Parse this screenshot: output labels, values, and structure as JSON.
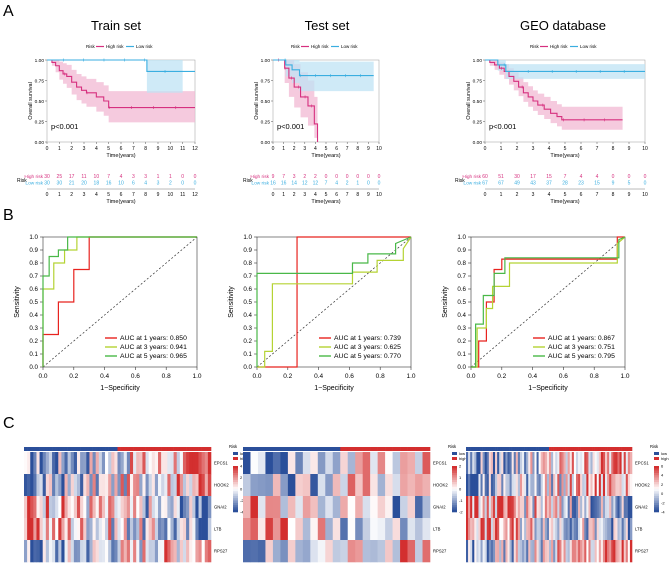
{
  "panel_labels": [
    "A",
    "B",
    "C"
  ],
  "colors": {
    "high": "#d6307f",
    "low": "#3aaee0",
    "high_band": "#f2b8d3",
    "low_band": "#bfe3f4",
    "auc1": "#e8231f",
    "auc3": "#b5d334",
    "auc5": "#49b848",
    "hm_high": "#d32f2f",
    "hm_low": "#2b4f9a"
  },
  "chart_data": [
    {
      "type": "line",
      "id": "km-train",
      "title": "Train set",
      "xlabel": "Time(years)",
      "ylabel": "Overall survival",
      "xlim": [
        0,
        12
      ],
      "ylim": [
        0,
        1
      ],
      "xticks": [
        "0",
        "1",
        "2",
        "3",
        "4",
        "5",
        "6",
        "7",
        "8",
        "9",
        "10",
        "11",
        "12"
      ],
      "yticks": [
        "0.00",
        "0.25",
        "0.50",
        "0.75",
        "1.00"
      ],
      "legend": {
        "title": "Risk",
        "entries": [
          "High risk",
          "Low risk"
        ]
      },
      "pvalue": "p<0.001",
      "series": [
        {
          "name": "High risk",
          "x": [
            0,
            0.4,
            0.7,
            1,
            1.3,
            1.6,
            2,
            2.4,
            2.8,
            3.2,
            4,
            4.6,
            5,
            6,
            7,
            8,
            9,
            10,
            12
          ],
          "y": [
            1,
            0.97,
            0.93,
            0.87,
            0.83,
            0.8,
            0.73,
            0.67,
            0.63,
            0.6,
            0.55,
            0.5,
            0.42,
            0.42,
            0.42,
            0.42,
            0.42,
            0.42,
            0.42
          ],
          "lower": [
            1,
            0.93,
            0.85,
            0.76,
            0.71,
            0.66,
            0.58,
            0.51,
            0.47,
            0.43,
            0.37,
            0.32,
            0.24,
            0.24,
            0.24,
            0.24,
            0.24,
            0.24,
            0.24
          ],
          "upper": [
            1,
            1,
            1,
            0.98,
            0.96,
            0.94,
            0.88,
            0.83,
            0.8,
            0.77,
            0.73,
            0.69,
            0.62,
            0.62,
            0.62,
            0.62,
            0.62,
            0.62,
            0.62
          ]
        },
        {
          "name": "Low risk",
          "x": [
            0,
            8.1,
            12
          ],
          "y": [
            1,
            0.86,
            0.86
          ],
          "lower": [
            1,
            0.6,
            0.6
          ],
          "upper": [
            1,
            1,
            1
          ],
          "end": 11
        }
      ],
      "risk_table": {
        "title": "Risk",
        "rows": [
          {
            "name": "High risk",
            "values": [
              "30",
              "25",
              "17",
              "11",
              "10",
              "7",
              "4",
              "3",
              "3",
              "1",
              "1",
              "0",
              "0"
            ]
          },
          {
            "name": "Low risk",
            "values": [
              "30",
              "30",
              "21",
              "20",
              "18",
              "16",
              "10",
              "6",
              "4",
              "3",
              "2",
              "0",
              "0"
            ]
          }
        ]
      }
    },
    {
      "type": "line",
      "id": "km-test",
      "title": "Test set",
      "xlabel": "Time(years)",
      "ylabel": "Overall survival",
      "xlim": [
        0,
        10
      ],
      "ylim": [
        0,
        1
      ],
      "xticks": [
        "0",
        "1",
        "2",
        "3",
        "4",
        "5",
        "6",
        "7",
        "8",
        "9",
        "10"
      ],
      "yticks": [
        "0.00",
        "0.25",
        "0.50",
        "0.75",
        "1.00"
      ],
      "legend": {
        "title": "Risk",
        "entries": [
          "High risk",
          "Low risk"
        ]
      },
      "pvalue": "p<0.001",
      "series": [
        {
          "name": "High risk",
          "x": [
            0,
            1.1,
            1.5,
            2,
            2.6,
            3.3,
            3.9,
            4.2
          ],
          "y": [
            1,
            0.9,
            0.78,
            0.67,
            0.55,
            0.44,
            0.22,
            0
          ],
          "lower": [
            1,
            0.72,
            0.55,
            0.42,
            0.3,
            0.2,
            0.05,
            0
          ],
          "upper": [
            1,
            1,
            1,
            0.95,
            0.85,
            0.75,
            0.55,
            0.2
          ],
          "end": 4.2
        },
        {
          "name": "Low risk",
          "x": [
            0,
            1.2,
            1.8,
            2.5,
            9.5
          ],
          "y": [
            1,
            0.94,
            0.88,
            0.81,
            0.81
          ],
          "lower": [
            1,
            0.8,
            0.72,
            0.62,
            0.62
          ],
          "upper": [
            1,
            1,
            1,
            0.98,
            0.98
          ],
          "end": 9.5
        }
      ],
      "risk_table": {
        "title": "Risk",
        "rows": [
          {
            "name": "High risk",
            "values": [
              "9",
              "7",
              "3",
              "2",
              "2",
              "0",
              "0",
              "0",
              "0",
              "0",
              "0"
            ]
          },
          {
            "name": "Low risk",
            "values": [
              "16",
              "16",
              "14",
              "12",
              "12",
              "7",
              "4",
              "2",
              "1",
              "0",
              "0"
            ]
          }
        ]
      }
    },
    {
      "type": "line",
      "id": "km-geo",
      "title": "GEO database",
      "xlabel": "Time(years)",
      "ylabel": "Overall survival",
      "xlim": [
        0,
        10
      ],
      "ylim": [
        0,
        1
      ],
      "xticks": [
        "0",
        "1",
        "2",
        "3",
        "4",
        "5",
        "6",
        "7",
        "8",
        "9",
        "10"
      ],
      "yticks": [
        "0.00",
        "0.25",
        "0.50",
        "0.75",
        "1.00"
      ],
      "legend": {
        "title": "Risk",
        "entries": [
          "High risk",
          "Low risk"
        ]
      },
      "pvalue": "p<0.001",
      "series": [
        {
          "name": "High risk",
          "x": [
            0,
            0.3,
            0.6,
            0.9,
            1.2,
            1.5,
            1.8,
            2.1,
            2.4,
            2.7,
            3,
            3.3,
            3.7,
            4.1,
            4.5,
            4.8,
            5,
            8.6
          ],
          "y": [
            1,
            0.97,
            0.94,
            0.9,
            0.86,
            0.8,
            0.74,
            0.67,
            0.6,
            0.55,
            0.5,
            0.45,
            0.4,
            0.35,
            0.31,
            0.27,
            0.27,
            0.27
          ],
          "lower": [
            1,
            0.93,
            0.88,
            0.82,
            0.77,
            0.7,
            0.63,
            0.56,
            0.49,
            0.43,
            0.38,
            0.33,
            0.28,
            0.23,
            0.19,
            0.15,
            0.15,
            0.15
          ],
          "upper": [
            1,
            1,
            1,
            0.97,
            0.95,
            0.9,
            0.85,
            0.79,
            0.73,
            0.68,
            0.63,
            0.59,
            0.55,
            0.5,
            0.46,
            0.43,
            0.43,
            0.43
          ],
          "end": 8.6
        },
        {
          "name": "Low risk",
          "x": [
            0,
            0.8,
            1.3,
            10
          ],
          "y": [
            1,
            0.94,
            0.86,
            0.86
          ],
          "lower": [
            1,
            0.87,
            0.77,
            0.77
          ],
          "upper": [
            1,
            1,
            0.95,
            0.95
          ],
          "end": 10
        }
      ],
      "risk_table": {
        "title": "Risk",
        "rows": [
          {
            "name": "High risk",
            "values": [
              "60",
              "51",
              "30",
              "17",
              "15",
              "7",
              "4",
              "4",
              "0",
              "0",
              "0"
            ]
          },
          {
            "name": "Low risk",
            "values": [
              "67",
              "67",
              "49",
              "43",
              "37",
              "28",
              "23",
              "15",
              "9",
              "5",
              "0"
            ]
          }
        ]
      }
    },
    {
      "type": "line",
      "id": "roc-train",
      "xlabel": "1−Specificity",
      "ylabel": "Sensitivity",
      "xlim": [
        0,
        1
      ],
      "ylim": [
        0,
        1
      ],
      "xticks": [
        "0.0",
        "0.2",
        "0.4",
        "0.6",
        "0.8",
        "1.0"
      ],
      "yticks": [
        "0.0",
        "0.1",
        "0.2",
        "0.3",
        "0.4",
        "0.5",
        "0.6",
        "0.7",
        "0.8",
        "0.9",
        "1.0"
      ],
      "series": [
        {
          "name": "AUC at 1 years: 0.850",
          "x": [
            0,
            0,
            0.1,
            0.1,
            0.2,
            0.2,
            0.3,
            0.3,
            1
          ],
          "y": [
            0,
            0.25,
            0.25,
            0.5,
            0.5,
            0.75,
            0.75,
            1,
            1
          ]
        },
        {
          "name": "AUC at 3 years: 0.941",
          "x": [
            0,
            0,
            0.07,
            0.07,
            0.14,
            0.14,
            0.22,
            0.22,
            1
          ],
          "y": [
            0,
            0.6,
            0.6,
            0.8,
            0.8,
            0.9,
            0.9,
            1,
            1
          ]
        },
        {
          "name": "AUC at 5 years: 0.965",
          "x": [
            0,
            0,
            0.04,
            0.04,
            0.1,
            0.1,
            0.16,
            0.16,
            1
          ],
          "y": [
            0,
            0.7,
            0.7,
            0.85,
            0.85,
            0.9,
            0.9,
            1,
            1
          ]
        }
      ]
    },
    {
      "type": "line",
      "id": "roc-test",
      "xlabel": "1−Specificity",
      "ylabel": "Sensitivity",
      "xlim": [
        0,
        1
      ],
      "ylim": [
        0,
        1
      ],
      "xticks": [
        "0.0",
        "0.2",
        "0.4",
        "0.6",
        "0.8",
        "1.0"
      ],
      "yticks": [
        "0.0",
        "0.1",
        "0.2",
        "0.3",
        "0.4",
        "0.5",
        "0.6",
        "0.7",
        "0.8",
        "0.9",
        "1.0"
      ],
      "series": [
        {
          "name": "AUC at 1 years: 0.739",
          "x": [
            0,
            0.26,
            0.26,
            1
          ],
          "y": [
            0,
            0,
            1,
            1
          ]
        },
        {
          "name": "AUC at 3 years: 0.625",
          "x": [
            0,
            0.05,
            0.05,
            0.1,
            0.1,
            0.26,
            0.26,
            0.62,
            0.62,
            0.78,
            0.78,
            0.95,
            0.95,
            1
          ],
          "y": [
            0,
            0,
            0.12,
            0.12,
            0.64,
            0.64,
            0.64,
            0.64,
            0.73,
            0.73,
            0.82,
            0.82,
            0.91,
            1
          ]
        },
        {
          "name": "AUC at 5 years: 0.770",
          "x": [
            0,
            0,
            0.3,
            0.3,
            0.62,
            0.62,
            0.72,
            0.72,
            0.9,
            0.9,
            1
          ],
          "y": [
            0,
            0.72,
            0.72,
            0.72,
            0.72,
            0.8,
            0.8,
            0.87,
            0.87,
            0.95,
            1
          ]
        }
      ]
    },
    {
      "type": "line",
      "id": "roc-geo",
      "xlabel": "1−Specificity",
      "ylabel": "Sensitivity",
      "xlim": [
        0,
        1
      ],
      "ylim": [
        0,
        1
      ],
      "xticks": [
        "0.0",
        "0.2",
        "0.4",
        "0.6",
        "0.8",
        "1.0"
      ],
      "yticks": [
        "0.0",
        "0.1",
        "0.2",
        "0.3",
        "0.4",
        "0.5",
        "0.6",
        "0.7",
        "0.8",
        "0.9",
        "1.0"
      ],
      "series": [
        {
          "name": "AUC at 1 years: 0.867",
          "x": [
            0,
            0.05,
            0.05,
            0.1,
            0.1,
            0.15,
            0.15,
            0.2,
            0.2,
            0.95,
            0.95,
            1
          ],
          "y": [
            0,
            0,
            0.2,
            0.2,
            0.5,
            0.5,
            0.75,
            0.75,
            0.83,
            0.83,
            1,
            1
          ]
        },
        {
          "name": "AUC at 3 years: 0.751",
          "x": [
            0,
            0.04,
            0.04,
            0.1,
            0.1,
            0.14,
            0.14,
            0.25,
            0.25,
            0.95,
            0.95,
            1
          ],
          "y": [
            0,
            0,
            0.3,
            0.3,
            0.45,
            0.45,
            0.62,
            0.62,
            0.8,
            0.8,
            0.95,
            1
          ]
        },
        {
          "name": "AUC at 5 years: 0.795",
          "x": [
            0,
            0.03,
            0.03,
            0.08,
            0.08,
            0.15,
            0.15,
            0.22,
            0.22,
            0.96,
            0.96,
            1
          ],
          "y": [
            0,
            0,
            0.33,
            0.33,
            0.55,
            0.55,
            0.72,
            0.72,
            0.84,
            0.84,
            0.98,
            1
          ]
        }
      ]
    },
    {
      "type": "heatmap",
      "id": "heatmap-train",
      "rows": [
        "EPCS1",
        "HOOK2",
        "GNAI2",
        "LTB",
        "RPS27"
      ],
      "legend": {
        "title": "Risk",
        "entries": [
          "low",
          "high"
        ],
        "scale": [
          "4",
          "2",
          "0",
          "-2",
          "-4"
        ]
      }
    },
    {
      "type": "heatmap",
      "id": "heatmap-test",
      "rows": [
        "EPCS1",
        "HOOK2",
        "GNAI2",
        "LTB",
        "RPS27"
      ],
      "legend": {
        "title": "Risk",
        "entries": [
          "low",
          "high"
        ],
        "scale": [
          "2",
          "1",
          "0",
          "-1",
          "-2"
        ]
      }
    },
    {
      "type": "heatmap",
      "id": "heatmap-geo",
      "rows": [
        "EPCS1",
        "HOOK2",
        "GNAI2",
        "LTB",
        "RPS27"
      ],
      "legend": {
        "title": "Risk",
        "entries": [
          "low",
          "high"
        ],
        "scale": [
          "6",
          "4",
          "2",
          "0",
          "-2",
          "-4"
        ]
      }
    }
  ]
}
